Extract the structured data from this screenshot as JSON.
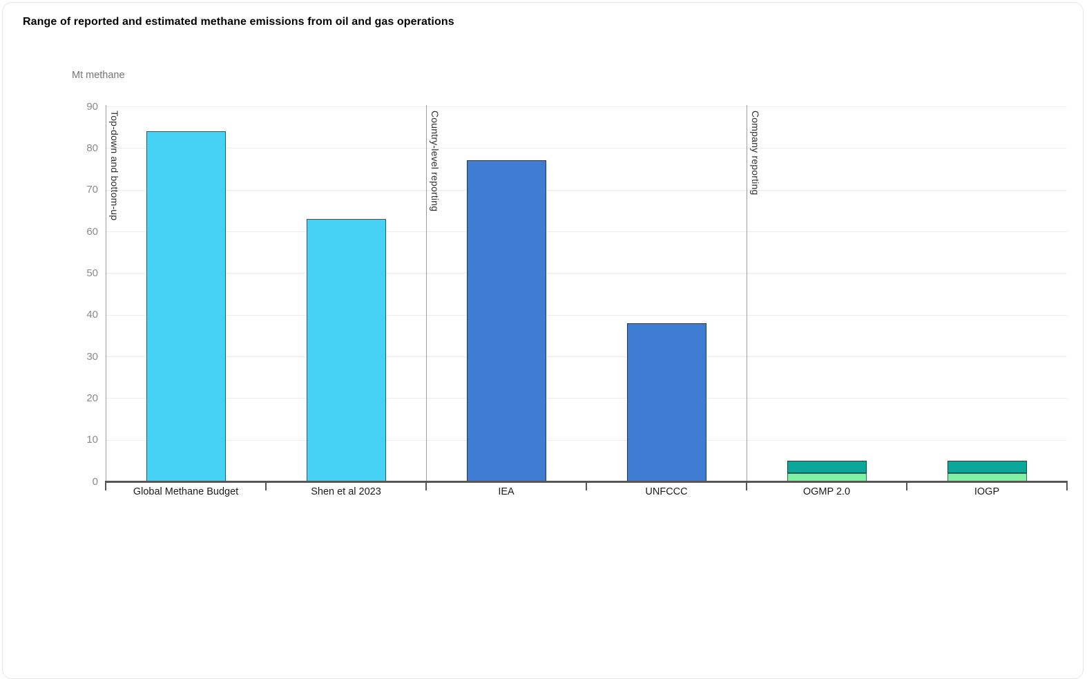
{
  "card": {
    "background": "#ffffff",
    "border_color": "#e6e6e6"
  },
  "chart_data": {
    "type": "bar",
    "title": "Range of reported and estimated methane emissions from oil and gas operations",
    "unit_label": "Mt methane",
    "xlabel": "",
    "ylabel": "Mt methane",
    "ylim": [
      0,
      90
    ],
    "ytick_step": 10,
    "grid": true,
    "legend": "none",
    "categories": [
      "Global Methane Budget",
      "Shen et al 2023",
      "IEA",
      "UNFCCC",
      "OGMP 2.0",
      "IOGP"
    ],
    "sections": [
      {
        "label": "Top-down and bottom-up",
        "start_index": 0
      },
      {
        "label": "Country-level reporting",
        "start_index": 2
      },
      {
        "label": "Company reporting",
        "start_index": 4
      }
    ],
    "bars": [
      {
        "category": "Global Methane Budget",
        "section": "Top-down and bottom-up",
        "total": 84,
        "segments": [
          {
            "value": 84,
            "color": "#45d2f5"
          }
        ]
      },
      {
        "category": "Shen et al 2023",
        "section": "Top-down and bottom-up",
        "total": 63,
        "segments": [
          {
            "value": 63,
            "color": "#45d2f5"
          }
        ]
      },
      {
        "category": "IEA",
        "section": "Country-level reporting",
        "total": 77,
        "segments": [
          {
            "value": 77,
            "color": "#3f7dd3"
          }
        ]
      },
      {
        "category": "UNFCCC",
        "section": "Country-level reporting",
        "total": 38,
        "segments": [
          {
            "value": 38,
            "color": "#3f7dd3"
          }
        ]
      },
      {
        "category": "OGMP 2.0",
        "section": "Company reporting",
        "total": 5,
        "segments": [
          {
            "value": 2,
            "color": "#80f1a4"
          },
          {
            "value": 3,
            "color": "#0ba79a"
          }
        ]
      },
      {
        "category": "IOGP",
        "section": "Company reporting",
        "total": 5,
        "segments": [
          {
            "value": 2,
            "color": "#80f1a4"
          },
          {
            "value": 3,
            "color": "#0ba79a"
          }
        ]
      }
    ],
    "colors": {
      "top_down_bottom_up": "#45d2f5",
      "country_level_reporting": "#3f7dd3",
      "company_reporting_lower": "#80f1a4",
      "company_reporting_upper": "#0ba79a",
      "axis": "#565656",
      "gridline": "#ececec",
      "section_line": "#9e9e9e"
    }
  }
}
